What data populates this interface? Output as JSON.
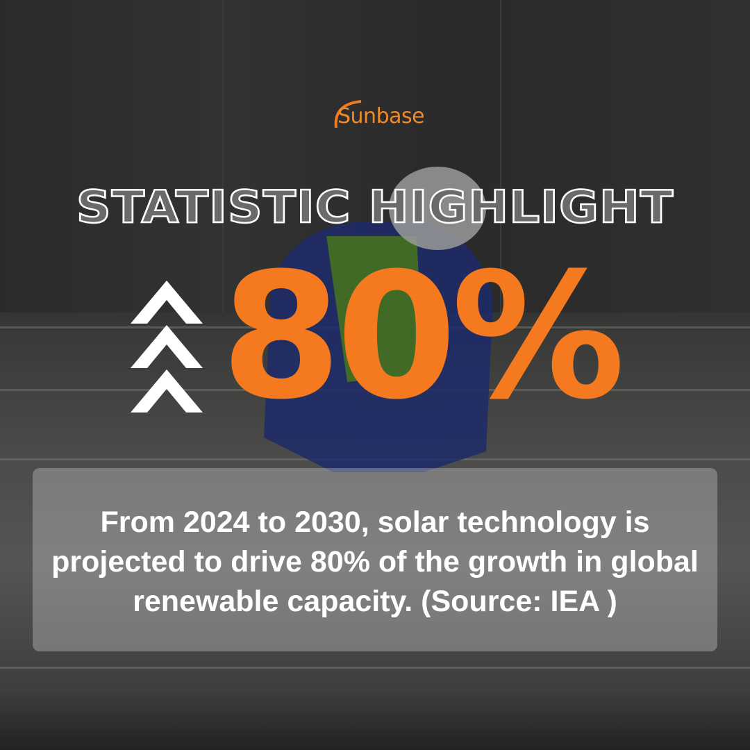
{
  "brand": {
    "logo_text": "Sunbase",
    "accent": "#F57A1F"
  },
  "title": "STATISTIC HIGHLIGHT",
  "stat": {
    "value": "80%",
    "icon": "triple-chevron-up-icon"
  },
  "description": "From 2024 to 2030, solar technology is projected to drive 80% of the growth in global renewable capacity. (Source: IEA )"
}
